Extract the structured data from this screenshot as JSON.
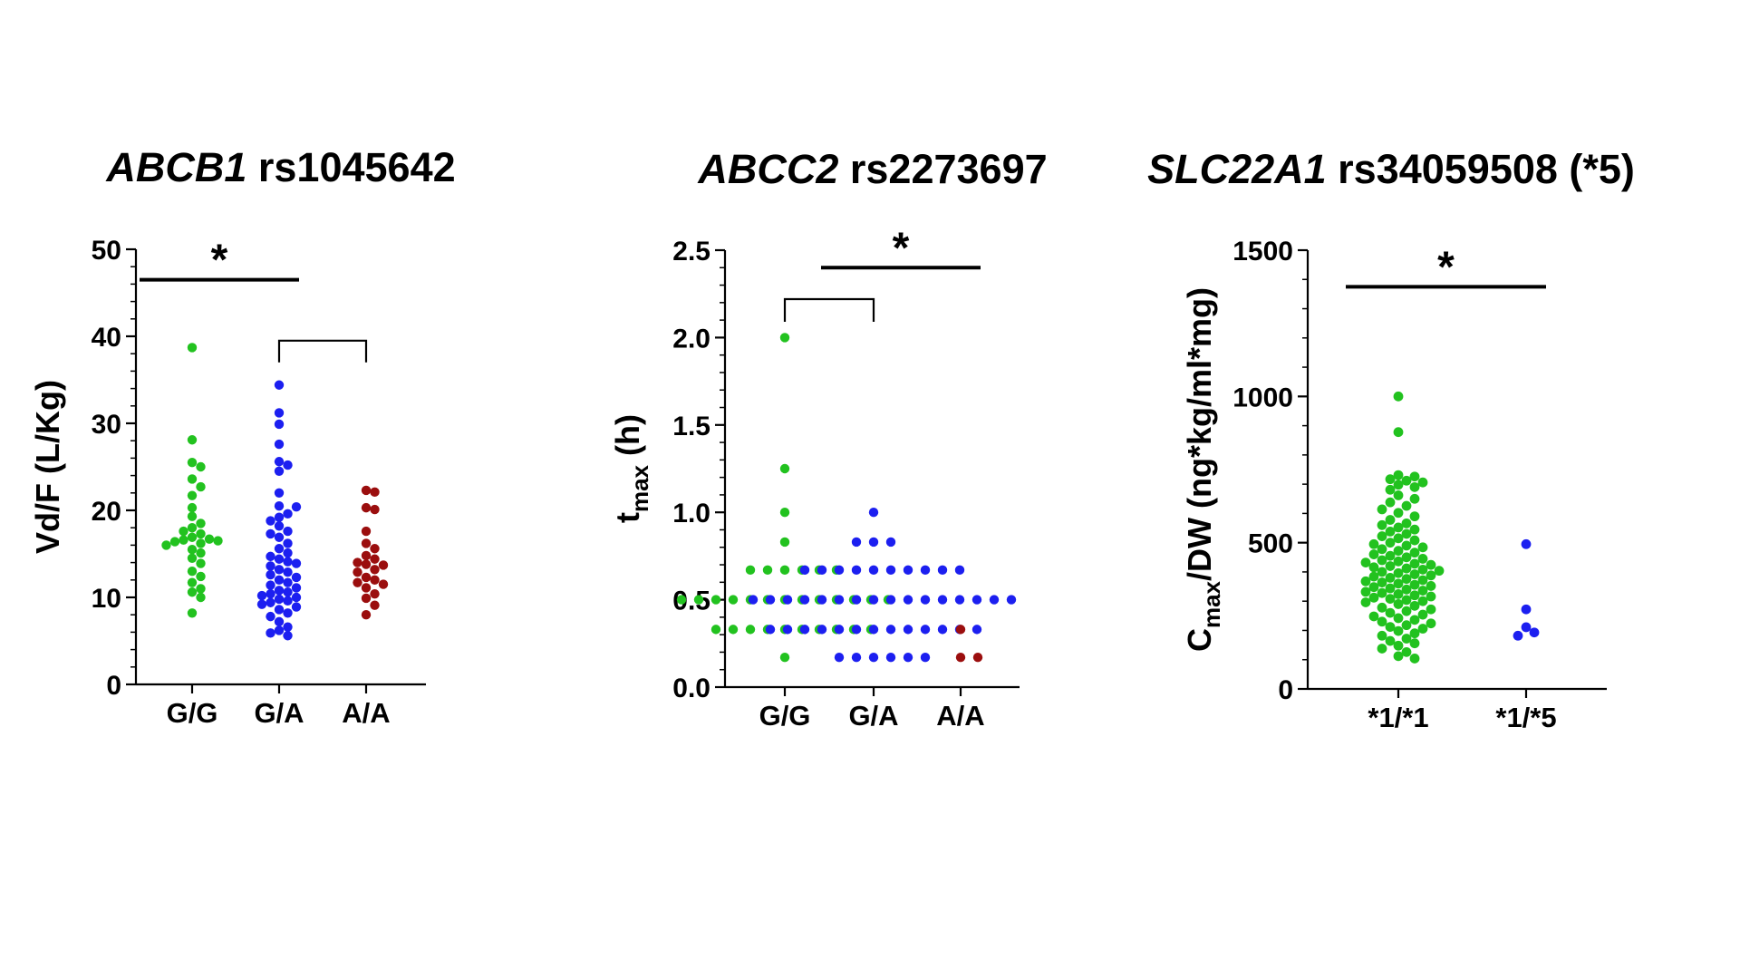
{
  "chart_data": [
    {
      "type": "scatter",
      "title_italic": "ABCB1",
      "title_rest": " rs1045642",
      "ylabel": "Vd/F (L/Kg)",
      "ylabel_main": "Vd/F (L/Kg)",
      "ylabel_sub": "",
      "ylabel_after": "",
      "xlabel": "",
      "ylim": [
        0,
        50
      ],
      "yticks": [
        0,
        10,
        20,
        30,
        40,
        50
      ],
      "ytick_labels": [
        "0",
        "10",
        "20",
        "30",
        "40",
        "50"
      ],
      "minor_ticks_per_interval": 5,
      "categories": [
        "G/G",
        "G/A",
        "A/A"
      ],
      "series": [
        {
          "color": "#22c21f",
          "values": [
            38.7,
            28.1,
            25.5,
            25.0,
            23.6,
            22.7,
            21.7,
            20.3,
            19.3,
            18.5,
            18.0,
            17.6,
            17.3,
            16.9,
            16.7,
            16.6,
            16.5,
            16.4,
            16.2,
            16.0,
            15.5,
            15.1,
            14.5,
            13.9,
            13.0,
            12.4,
            11.7,
            11.0,
            10.6,
            10.0,
            8.2
          ]
        },
        {
          "color": "#1c1ff0",
          "values": [
            34.4,
            31.2,
            29.9,
            27.6,
            25.6,
            25.2,
            24.5,
            22.0,
            20.5,
            20.4,
            19.6,
            19.2,
            18.8,
            18.2,
            17.6,
            17.3,
            16.9,
            16.2,
            15.6,
            15.1,
            14.7,
            14.4,
            14.1,
            13.9,
            13.6,
            13.2,
            12.9,
            12.6,
            12.3,
            12.0,
            11.7,
            11.4,
            11.1,
            10.8,
            10.6,
            10.4,
            10.2,
            10.0,
            9.8,
            9.6,
            9.4,
            9.2,
            8.9,
            8.6,
            8.2,
            7.8,
            7.2,
            6.6,
            6.2,
            5.9,
            5.6
          ]
        },
        {
          "color": "#9b0e0e",
          "values": [
            22.3,
            22.1,
            20.3,
            20.1,
            17.6,
            16.2,
            15.6,
            14.8,
            14.4,
            14.0,
            13.8,
            13.7,
            13.2,
            12.9,
            12.3,
            12.0,
            11.7,
            11.5,
            11.1,
            10.4,
            9.9,
            9.1,
            8.0
          ]
        }
      ],
      "significance": [
        {
          "type": "bar",
          "from": 0,
          "to": 1,
          "y": 46.5,
          "label": "*"
        },
        {
          "type": "bracket",
          "from": 1,
          "to": 2,
          "y": 39.5,
          "y_end": 37.0,
          "label": ""
        }
      ]
    },
    {
      "type": "scatter",
      "title_italic": "ABCC2",
      "title_rest": " rs2273697",
      "ylabel": "tmax (h)",
      "ylabel_main": "t",
      "ylabel_sub": "max",
      "ylabel_after": " (h)",
      "xlabel": "",
      "ylim": [
        0,
        2.5
      ],
      "yticks": [
        0,
        0.5,
        1.0,
        1.5,
        2.0,
        2.5
      ],
      "ytick_labels": [
        "0.0",
        "0.5",
        "1.0",
        "1.5",
        "2.0",
        "2.5"
      ],
      "minor_ticks_per_interval": 5,
      "categories": [
        "G/G",
        "G/A",
        "A/A"
      ],
      "series": [
        {
          "color": "#22c21f",
          "values": [
            2.0,
            1.25,
            1.0,
            0.83,
            0.67,
            0.67,
            0.67,
            0.67,
            0.67,
            0.67,
            0.5,
            0.5,
            0.5,
            0.5,
            0.5,
            0.5,
            0.5,
            0.5,
            0.5,
            0.5,
            0.5,
            0.5,
            0.5,
            0.33,
            0.33,
            0.33,
            0.33,
            0.33,
            0.33,
            0.33,
            0.33,
            0.33,
            0.33,
            0.17
          ]
        },
        {
          "color": "#1c1ff0",
          "values": [
            1.0,
            0.83,
            0.83,
            0.83,
            0.67,
            0.67,
            0.67,
            0.67,
            0.67,
            0.67,
            0.67,
            0.67,
            0.67,
            0.67,
            0.5,
            0.5,
            0.5,
            0.5,
            0.5,
            0.5,
            0.5,
            0.5,
            0.5,
            0.5,
            0.5,
            0.5,
            0.5,
            0.5,
            0.5,
            0.5,
            0.33,
            0.33,
            0.33,
            0.33,
            0.33,
            0.33,
            0.33,
            0.33,
            0.33,
            0.33,
            0.33,
            0.33,
            0.33,
            0.17,
            0.17,
            0.17,
            0.17,
            0.17,
            0.17
          ]
        },
        {
          "color": "#9b0e0e",
          "values": [
            0.33,
            0.17,
            0.17
          ]
        }
      ],
      "significance": [
        {
          "type": "bar",
          "from": 1,
          "to": 2,
          "y": 2.4,
          "label": "*"
        },
        {
          "type": "bracket",
          "from": 0,
          "to": 1,
          "y": 2.22,
          "y_end": 2.09,
          "label": ""
        }
      ]
    },
    {
      "type": "scatter",
      "title_italic": "SLC22A1",
      "title_rest": " rs34059508 (*5)",
      "ylabel": "Cmax/DW (ng*kg/ml*mg)",
      "ylabel_main": "C",
      "ylabel_sub": "max",
      "ylabel_after": "/DW (ng*kg/ml*mg)",
      "xlabel": "",
      "ylim": [
        0,
        1500
      ],
      "yticks": [
        0,
        500,
        1000,
        1500
      ],
      "ytick_labels": [
        "0",
        "500",
        "1000",
        "1500"
      ],
      "minor_ticks_per_interval": 5,
      "categories": [
        "*1/*1",
        "*1/*5"
      ],
      "series": [
        {
          "color": "#22c21f",
          "values": [
            1000,
            878,
            731,
            726,
            717,
            712,
            706,
            698,
            690,
            681,
            662,
            650,
            638,
            626,
            614,
            602,
            590,
            578,
            566,
            560,
            552,
            545,
            538,
            530,
            522,
            515,
            508,
            500,
            495,
            490,
            484,
            478,
            472,
            466,
            460,
            455,
            450,
            445,
            440,
            436,
            432,
            428,
            424,
            420,
            416,
            412,
            408,
            404,
            400,
            396,
            392,
            388,
            384,
            380,
            376,
            372,
            368,
            364,
            360,
            356,
            352,
            348,
            344,
            340,
            336,
            332,
            328,
            324,
            320,
            316,
            312,
            308,
            304,
            300,
            296,
            290,
            284,
            278,
            272,
            266,
            260,
            254,
            248,
            242,
            236,
            230,
            224,
            218,
            212,
            206,
            198,
            190,
            182,
            172,
            164,
            156,
            148,
            138,
            126,
            112,
            104
          ]
        },
        {
          "color": "#1c1ff0",
          "values": [
            495,
            272,
            211,
            193,
            182
          ]
        }
      ],
      "significance": [
        {
          "type": "bar",
          "from": 0,
          "to": 1,
          "y": 1375,
          "label": "*"
        }
      ]
    }
  ]
}
